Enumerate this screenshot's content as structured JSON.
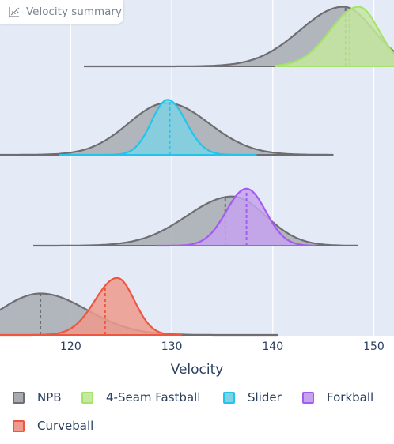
{
  "header": {
    "badge_label": "Velocity summary",
    "badge_icon": "scatter-chart-icon"
  },
  "chart_data": {
    "type": "area",
    "xlabel": "Velocity",
    "xlim": [
      113,
      152
    ],
    "xticks": [
      120,
      130,
      140,
      150
    ],
    "rows": [
      {
        "pitch": "4-Seam Fastball",
        "npb": {
          "range": [
            121.3,
            155.5
          ],
          "mean": 147.2,
          "peak_x": 147.0,
          "peak_h": 0.92,
          "sd_left": 4.3,
          "sd_right": 3.0
        },
        "pitcher": {
          "range": [
            140.2,
            153.7
          ],
          "mean": 147.6,
          "peak_x": 148.5,
          "peak_h": 0.92,
          "sd_left": 2.8,
          "sd_right": 2.0
        }
      },
      {
        "pitch": "Slider",
        "npb": {
          "range": [
            112.0,
            146.0
          ],
          "mean": 129.8,
          "peak_x": 129.5,
          "peak_h": 0.8,
          "sd_left": 3.8,
          "sd_right": 4.2
        },
        "pitcher": {
          "range": [
            118.8,
            138.4
          ],
          "mean": 129.8,
          "peak_x": 129.6,
          "peak_h": 0.85,
          "sd_left": 1.6,
          "sd_right": 1.8
        }
      },
      {
        "pitch": "Forkball",
        "npb": {
          "range": [
            116.3,
            148.4
          ],
          "mean": 135.3,
          "peak_x": 136.0,
          "peak_h": 0.76,
          "sd_left": 4.5,
          "sd_right": 3.3
        },
        "pitcher": {
          "range": [
            128.5,
            144.2
          ],
          "mean": 137.4,
          "peak_x": 137.4,
          "peak_h": 0.88,
          "sd_left": 2.0,
          "sd_right": 1.9
        }
      },
      {
        "pitch": "Curveball",
        "npb": {
          "range": [
            105.0,
            140.5
          ],
          "mean": 117.0,
          "peak_x": 117.0,
          "peak_h": 0.64,
          "sd_left": 4.0,
          "sd_right": 4.6
        },
        "pitcher": {
          "range": [
            113.0,
            131.0
          ],
          "mean": 123.4,
          "peak_x": 124.6,
          "peak_h": 0.88,
          "sd_left": 2.2,
          "sd_right": 1.7
        }
      }
    ],
    "legend": [
      {
        "name": "NPB",
        "fill": "#a8abb1",
        "stroke": "#6e6e72"
      },
      {
        "name": "4-Seam Fastball",
        "fill": "#c6e8a0",
        "stroke": "#a6e36c"
      },
      {
        "name": "Slider",
        "fill": "#7fd2e4",
        "stroke": "#22c4ec"
      },
      {
        "name": "Forkball",
        "fill": "#c6a3ee",
        "stroke": "#a45cf0"
      },
      {
        "name": "Curveball",
        "fill": "#ef9a8c",
        "stroke": "#ee563f"
      }
    ],
    "legend_position": "bottom"
  }
}
